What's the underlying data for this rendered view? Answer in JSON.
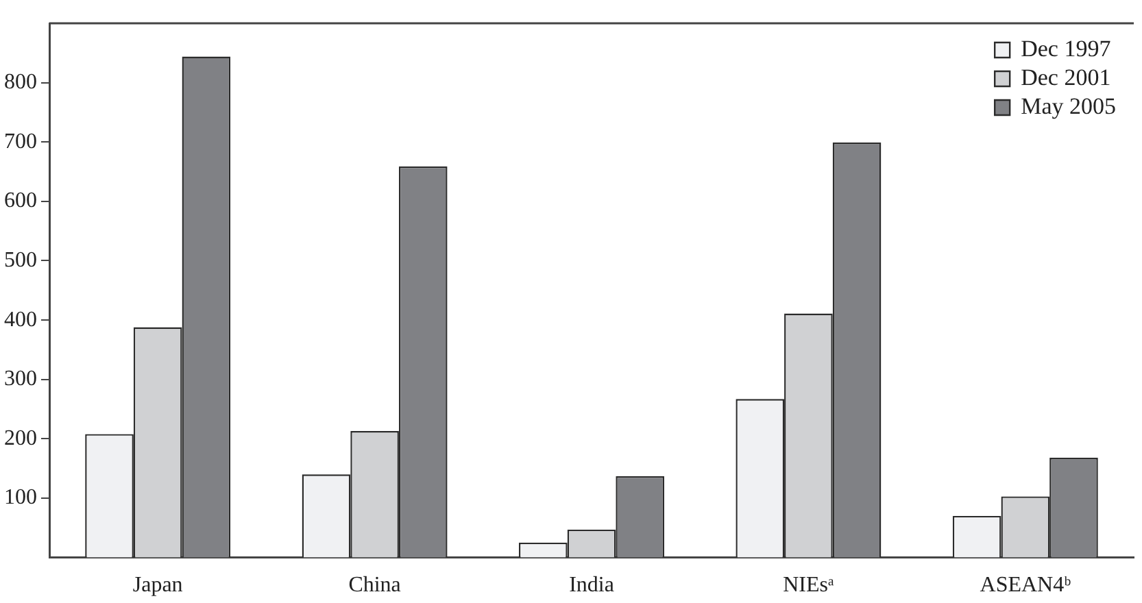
{
  "chart_data": {
    "type": "bar",
    "categories": [
      "Japan",
      "China",
      "India",
      "NIEsᵃ",
      "ASEAN4ᵇ"
    ],
    "series": [
      {
        "name": "Dec 1997",
        "color": "#f0f1f3",
        "values": [
          208,
          140,
          25,
          267,
          70
        ]
      },
      {
        "name": "Dec 2001",
        "color": "#d0d1d3",
        "values": [
          388,
          213,
          47,
          411,
          103
        ]
      },
      {
        "name": "May 2005",
        "color": "#808185",
        "values": [
          844,
          659,
          137,
          699,
          168
        ]
      }
    ],
    "ylim": [
      0,
      900
    ],
    "yticks": [
      100,
      200,
      300,
      400,
      500,
      600,
      700,
      800
    ],
    "grid": false,
    "legend": "top right"
  }
}
